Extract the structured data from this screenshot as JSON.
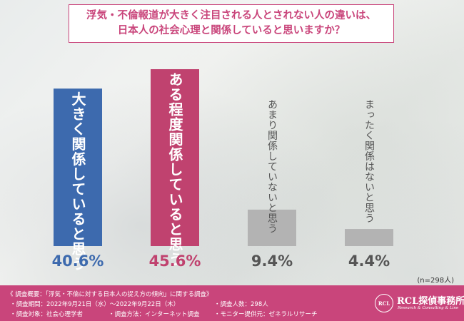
{
  "question": "浮気・不倫報道が大きく注目される人とされない人の違いは、\n日本人の社会心理と関係していると思いますか？",
  "chart_data": {
    "type": "bar",
    "categories": [
      "大きく関係していると思う",
      "ある程度関係していると思う",
      "あまり関係していないと思う",
      "まったく関係はないと思う"
    ],
    "values": [
      40.6,
      45.6,
      9.4,
      4.4
    ],
    "value_labels": [
      "40.6%",
      "45.6%",
      "9.4%",
      "4.4%"
    ],
    "colors": [
      "#3d6aae",
      "#c0426f",
      "#b3b3b3",
      "#b3b3b3"
    ],
    "ylim": [
      0,
      45.6
    ],
    "grid": false,
    "legend": "none",
    "sample_size": "(n=298人)"
  },
  "footer": {
    "overview": "《 調査概要：「浮気・不倫に対する日本人の捉え方の傾向」に関する調査》",
    "period": "・調査期間：2022年9月21日（水）～2022年9月22日（木）",
    "count": "・調査人数：298人",
    "target": "・調査対象：社会心理学者",
    "method": "・調査方法：インターネット調査",
    "provider": "・モニター提供元：ゼネラルリサーチ"
  },
  "logo": {
    "name": "RCL探偵事務所",
    "sub": "Research & Consulting & Line",
    "seal": "RCL"
  }
}
